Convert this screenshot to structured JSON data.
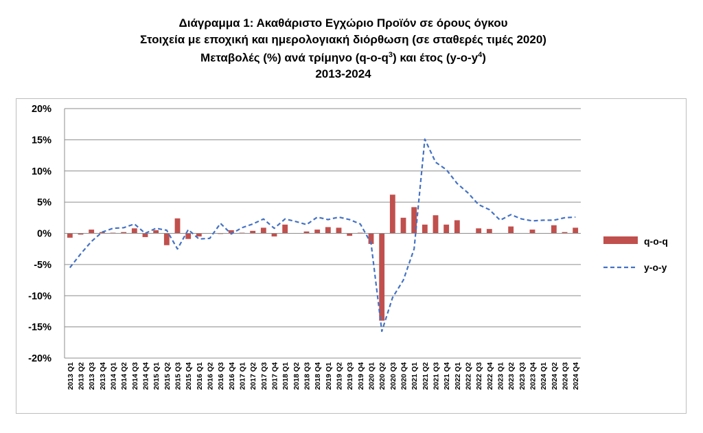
{
  "chart_data": {
    "type": "bar",
    "title_lines": [
      "Διάγραμμα 1: Ακαθάριστο Εγχώριο Προϊόν σε όρους όγκου",
      "Στοιχεία με εποχική και ημερολογιακή διόρθωση (σε σταθερές τιμές 2020)",
      "Μεταβολές (%) ανά τρίμηνο (q-o-q",
      "3",
      ") και έτος (y-o-y",
      "4",
      ")",
      "2013-2024"
    ],
    "xlabel": "",
    "ylabel": "",
    "ylim": [
      -20,
      20
    ],
    "yticks": [
      "20%",
      "15%",
      "10%",
      "5%",
      "0%",
      "-5%",
      "-10%",
      "-15%",
      "-20%"
    ],
    "ytick_values": [
      20,
      15,
      10,
      5,
      0,
      -5,
      -10,
      -15,
      -20
    ],
    "grid": true,
    "legend_position": "right",
    "categories": [
      "2013 Q1",
      "2013 Q2",
      "2013 Q3",
      "2013 Q4",
      "2014 Q1",
      "2014 Q2",
      "2014 Q3",
      "2014 Q4",
      "2015 Q1",
      "2015 Q2",
      "2015 Q3",
      "2015 Q4",
      "2016 Q1",
      "2016 Q2",
      "2016 Q3",
      "2016 Q4",
      "2017 Q1",
      "2017 Q2",
      "2017 Q3",
      "2017 Q4",
      "2018 Q1",
      "2018 Q2",
      "2018 Q3",
      "2018 Q4",
      "2019 Q1",
      "2019 Q2",
      "2019 Q3",
      "2019 Q4",
      "2020 Q1",
      "2020 Q2",
      "2020 Q3",
      "2020 Q4",
      "2021 Q1",
      "2021 Q2",
      "2021 Q3",
      "2021 Q4",
      "2022 Q1",
      "2022 Q2",
      "2022 Q3",
      "2022 Q4",
      "2023 Q1",
      "2023 Q2",
      "2023 Q3",
      "2023 Q4",
      "2024 Q1",
      "2024 Q2",
      "2024 Q3",
      "2024 Q4"
    ],
    "series": [
      {
        "name": "q-o-q",
        "kind": "bar",
        "color": "#c0504d",
        "values": [
          -0.7,
          -0.2,
          0.6,
          0.2,
          0.1,
          0.2,
          0.8,
          -0.6,
          0.5,
          -1.9,
          2.4,
          -0.9,
          -0.5,
          0.0,
          -0.1,
          0.5,
          0.1,
          0.4,
          0.9,
          -0.5,
          1.4,
          0.0,
          0.3,
          0.6,
          1.0,
          0.9,
          -0.4,
          0.1,
          -1.7,
          -14.0,
          6.2,
          2.5,
          4.2,
          1.4,
          2.9,
          1.4,
          2.1,
          0.0,
          0.8,
          0.7,
          0.0,
          1.1,
          0.0,
          0.6,
          0.0,
          1.3,
          0.2,
          0.9
        ]
      },
      {
        "name": "y-o-y",
        "kind": "line",
        "color": "#4472c4",
        "dash": true,
        "values": [
          -5.5,
          -3.3,
          -1.3,
          0.2,
          0.8,
          0.9,
          1.5,
          0.0,
          0.8,
          0.5,
          -2.5,
          0.6,
          -0.9,
          -0.8,
          1.6,
          -0.1,
          0.9,
          1.5,
          2.3,
          0.8,
          2.3,
          1.9,
          1.4,
          2.6,
          2.2,
          2.6,
          2.2,
          1.5,
          -1.6,
          -15.7,
          -10.3,
          -7.5,
          -2.5,
          15.1,
          11.4,
          10.2,
          8.0,
          6.5,
          4.6,
          3.8,
          2.1,
          3.0,
          2.3,
          2.0,
          2.1,
          2.1,
          2.5,
          2.6
        ]
      }
    ]
  }
}
